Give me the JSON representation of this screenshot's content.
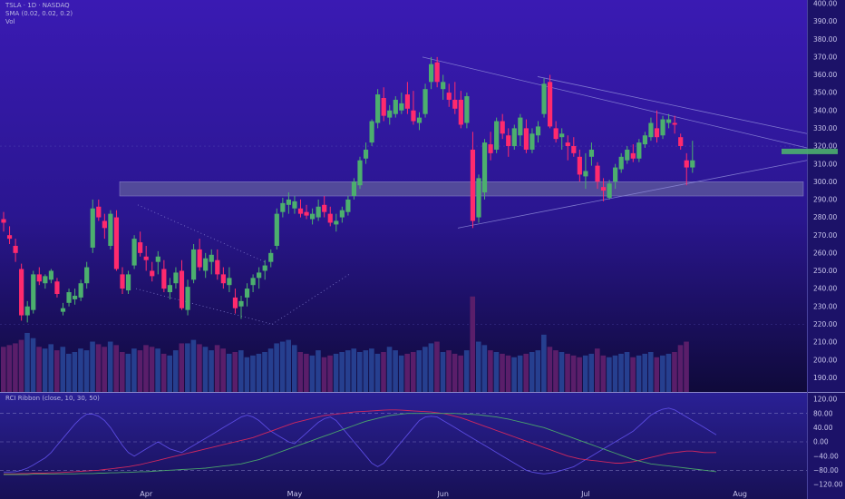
{
  "header": {
    "symbol_line": "TSLA · 1D · NASDAQ",
    "sma_line": "SMA (0.02, 0.02, 0.2)",
    "vol_line": "Vol"
  },
  "indicator": {
    "title": "RCI Ribbon (close, 10, 30, 50)"
  },
  "colors": {
    "bull": "#4caf6e",
    "bear": "#ff2a6d",
    "vol_bull": "#263f8f",
    "vol_bear": "#5a1e6a",
    "zone": "#6a6a9e",
    "rci_short": "#5b4be0",
    "rci_mid": "#d0285e",
    "rci_long": "#4aa36b"
  },
  "chart_data": [
    {
      "type": "candlestick",
      "title": "",
      "ylim": [
        182,
        402
      ],
      "y_ticks": [
        "190.00",
        "200.00",
        "210.00",
        "220.00",
        "230.00",
        "240.00",
        "250.00",
        "260.00",
        "270.00",
        "280.00",
        "290.00",
        "300.00",
        "310.00",
        "320.00",
        "330.00",
        "340.00",
        "350.00",
        "360.00",
        "370.00",
        "380.00",
        "390.00",
        "400.00"
      ],
      "x_ticks": [
        {
          "index": 24,
          "label": "Apr"
        },
        {
          "index": 49,
          "label": "May"
        },
        {
          "index": 74,
          "label": "Jun"
        },
        {
          "index": 98,
          "label": "Jul"
        },
        {
          "index": 124,
          "label": "Aug"
        }
      ],
      "support_zone": [
        292,
        300
      ],
      "current_price_marker": 317,
      "ohlc": [
        [
          279,
          283,
          272,
          277
        ],
        [
          270,
          275,
          265,
          268
        ],
        [
          264,
          268,
          255,
          260
        ],
        [
          251,
          254,
          222,
          225
        ],
        [
          225,
          233,
          221,
          230
        ],
        [
          228,
          250,
          226,
          248
        ],
        [
          248,
          252,
          242,
          244
        ],
        [
          243,
          248,
          240,
          247
        ],
        [
          245,
          251,
          243,
          250
        ],
        [
          244,
          246,
          235,
          237
        ],
        [
          227,
          232,
          225,
          229
        ],
        [
          232,
          240,
          230,
          238
        ],
        [
          234,
          240,
          231,
          236
        ],
        [
          235,
          245,
          233,
          243
        ],
        [
          243,
          255,
          240,
          252
        ],
        [
          263,
          290,
          260,
          285
        ],
        [
          286,
          290,
          278,
          280
        ],
        [
          278,
          282,
          268,
          274
        ],
        [
          264,
          284,
          262,
          282
        ],
        [
          280,
          284,
          250,
          251
        ],
        [
          248,
          252,
          237,
          240
        ],
        [
          239,
          250,
          237,
          248
        ],
        [
          253,
          270,
          251,
          268
        ],
        [
          266,
          272,
          258,
          260
        ],
        [
          258,
          264,
          250,
          256
        ],
        [
          250,
          255,
          244,
          247
        ],
        [
          255,
          261,
          248,
          258
        ],
        [
          251,
          256,
          238,
          240
        ],
        [
          238,
          246,
          234,
          242
        ],
        [
          243,
          252,
          240,
          249
        ],
        [
          250,
          256,
          228,
          229
        ],
        [
          228,
          245,
          225,
          241
        ],
        [
          245,
          265,
          243,
          262
        ],
        [
          262,
          268,
          250,
          252
        ],
        [
          250,
          260,
          246,
          257
        ],
        [
          255,
          262,
          248,
          259
        ],
        [
          256,
          262,
          245,
          248
        ],
        [
          248,
          252,
          240,
          243
        ],
        [
          242,
          252,
          238,
          246
        ],
        [
          235,
          240,
          226,
          229
        ],
        [
          230,
          236,
          223,
          233
        ],
        [
          235,
          243,
          230,
          240
        ],
        [
          242,
          248,
          238,
          246
        ],
        [
          246,
          252,
          240,
          249
        ],
        [
          250,
          256,
          245,
          253
        ],
        [
          255,
          262,
          252,
          260
        ],
        [
          264,
          285,
          262,
          282
        ],
        [
          283,
          291,
          280,
          288
        ],
        [
          287,
          294,
          282,
          290
        ],
        [
          285,
          292,
          282,
          289
        ],
        [
          285,
          290,
          280,
          282
        ],
        [
          283,
          287,
          279,
          281
        ],
        [
          279,
          285,
          276,
          282
        ],
        [
          280,
          290,
          278,
          286
        ],
        [
          287,
          292,
          280,
          283
        ],
        [
          282,
          286,
          275,
          277
        ],
        [
          276,
          282,
          272,
          278
        ],
        [
          280,
          286,
          277,
          284
        ],
        [
          283,
          292,
          281,
          290
        ],
        [
          292,
          302,
          290,
          300
        ],
        [
          298,
          314,
          296,
          312
        ],
        [
          313,
          322,
          310,
          318
        ],
        [
          322,
          335,
          320,
          334
        ],
        [
          333,
          352,
          330,
          349
        ],
        [
          347,
          353,
          334,
          337
        ],
        [
          336,
          343,
          332,
          340
        ],
        [
          338,
          348,
          336,
          346
        ],
        [
          340,
          350,
          338,
          344
        ],
        [
          349,
          356,
          338,
          341
        ],
        [
          340,
          351,
          332,
          334
        ],
        [
          333,
          339,
          329,
          336
        ],
        [
          338,
          355,
          336,
          352
        ],
        [
          356,
          370,
          352,
          366
        ],
        [
          367,
          370,
          353,
          356
        ],
        [
          352,
          360,
          346,
          356
        ],
        [
          350,
          355,
          342,
          346
        ],
        [
          346,
          356,
          338,
          341
        ],
        [
          346,
          351,
          330,
          332
        ],
        [
          333,
          350,
          330,
          348
        ],
        [
          318,
          328,
          274,
          278
        ],
        [
          280,
          304,
          277,
          302
        ],
        [
          294,
          324,
          290,
          322
        ],
        [
          321,
          328,
          312,
          316
        ],
        [
          318,
          336,
          316,
          334
        ],
        [
          334,
          338,
          324,
          327
        ],
        [
          326,
          330,
          314,
          320
        ],
        [
          320,
          332,
          318,
          330
        ],
        [
          326,
          338,
          320,
          336
        ],
        [
          330,
          335,
          316,
          318
        ],
        [
          318,
          330,
          316,
          327
        ],
        [
          326,
          334,
          322,
          331
        ],
        [
          338,
          358,
          336,
          355
        ],
        [
          356,
          360,
          330,
          331
        ],
        [
          330,
          334,
          322,
          324
        ],
        [
          325,
          330,
          318,
          327
        ],
        [
          322,
          326,
          312,
          320
        ],
        [
          320,
          325,
          314,
          316
        ],
        [
          314,
          318,
          300,
          304
        ],
        [
          303,
          316,
          296,
          306
        ],
        [
          314,
          322,
          309,
          318
        ],
        [
          309,
          311,
          296,
          300
        ],
        [
          297,
          302,
          289,
          295
        ],
        [
          291,
          301,
          290,
          299
        ],
        [
          300,
          310,
          296,
          308
        ],
        [
          307,
          316,
          305,
          314
        ],
        [
          312,
          320,
          310,
          318
        ],
        [
          316,
          321,
          311,
          313
        ],
        [
          313,
          324,
          311,
          322
        ],
        [
          321,
          328,
          319,
          326
        ],
        [
          325,
          336,
          323,
          333
        ],
        [
          330,
          340,
          322,
          325
        ],
        [
          326,
          337,
          324,
          335
        ],
        [
          333,
          338,
          330,
          335
        ],
        [
          333,
          337,
          327,
          332
        ],
        [
          325,
          327,
          318,
          320
        ],
        [
          312,
          316,
          298,
          308
        ],
        [
          308,
          323,
          305,
          312
        ]
      ],
      "volume": [
        52,
        54,
        56,
        60,
        68,
        62,
        52,
        50,
        55,
        48,
        52,
        44,
        46,
        50,
        48,
        58,
        55,
        52,
        58,
        54,
        46,
        44,
        50,
        48,
        54,
        52,
        50,
        44,
        42,
        48,
        56,
        56,
        60,
        55,
        52,
        48,
        54,
        50,
        44,
        46,
        48,
        40,
        42,
        44,
        46,
        50,
        56,
        58,
        60,
        54,
        46,
        44,
        42,
        48,
        40,
        42,
        44,
        46,
        48,
        50,
        46,
        48,
        50,
        44,
        46,
        52,
        48,
        42,
        44,
        46,
        48,
        52,
        56,
        58,
        46,
        48,
        44,
        42,
        48,
        110,
        58,
        54,
        48,
        46,
        44,
        42,
        40,
        42,
        44,
        46,
        48,
        66,
        52,
        48,
        46,
        44,
        42,
        40,
        42,
        44,
        50,
        42,
        40,
        42,
        44,
        46,
        40,
        42,
        44,
        46,
        40,
        42,
        44,
        46,
        54,
        58
      ],
      "volume_max": 115
    },
    {
      "type": "line",
      "title": "RCI Ribbon (close, 10, 30, 50)",
      "ylim": [
        -120,
        120
      ],
      "y_ticks": [
        "120.00",
        "80.00",
        "40.00",
        "0.00",
        "−40.00",
        "−80.00",
        "−120.00"
      ],
      "series": [
        {
          "name": "",
          "values": [
            -85,
            -85,
            -84,
            -80,
            -74,
            -65,
            -55,
            -45,
            -30,
            -10,
            10,
            30,
            50,
            66,
            78,
            78,
            72,
            60,
            40,
            15,
            -10,
            -30,
            -40,
            -30,
            -20,
            -10,
            0,
            -10,
            -20,
            -25,
            -30,
            -20,
            -10,
            0,
            10,
            20,
            30,
            40,
            50,
            60,
            70,
            75,
            70,
            60,
            45,
            30,
            20,
            10,
            0,
            -5,
            10,
            25,
            40,
            55,
            65,
            70,
            60,
            40,
            20,
            0,
            -20,
            -40,
            -60,
            -70,
            -60,
            -40,
            -20,
            0,
            20,
            40,
            60,
            70,
            72,
            70,
            60,
            50,
            40,
            30,
            20,
            10,
            0,
            -10,
            -20,
            -30,
            -40,
            -50,
            -60,
            -70,
            -80,
            -85,
            -88,
            -90,
            -88,
            -85,
            -80,
            -75,
            -70,
            -60,
            -50,
            -40,
            -30,
            -20,
            -10,
            0,
            10,
            20,
            30,
            45,
            60,
            75,
            85,
            92,
            95,
            90,
            80,
            70,
            60,
            50,
            40,
            30,
            20
          ]
        },
        {
          "name": "",
          "values": [
            -90,
            -90,
            -90,
            -89,
            -89,
            -88,
            -88,
            -88,
            -87,
            -87,
            -86,
            -85,
            -84,
            -83,
            -82,
            -81,
            -80,
            -78,
            -76,
            -74,
            -72,
            -70,
            -67,
            -64,
            -60,
            -56,
            -52,
            -48,
            -44,
            -40,
            -36,
            -32,
            -28,
            -24,
            -20,
            -16,
            -12,
            -8,
            -4,
            0,
            4,
            8,
            12,
            18,
            24,
            30,
            36,
            42,
            48,
            54,
            58,
            62,
            66,
            70,
            74,
            76,
            78,
            80,
            82,
            84,
            85,
            86,
            87,
            88,
            89,
            90,
            90,
            89,
            88,
            87,
            86,
            85,
            84,
            82,
            80,
            76,
            72,
            68,
            62,
            56,
            50,
            44,
            38,
            32,
            26,
            20,
            14,
            8,
            2,
            -4,
            -10,
            -16,
            -22,
            -28,
            -34,
            -40,
            -44,
            -48,
            -50,
            -52,
            -54,
            -56,
            -58,
            -60,
            -60,
            -58,
            -56,
            -52,
            -48,
            -44,
            -40,
            -36,
            -32,
            -30,
            -28,
            -26,
            -26,
            -28,
            -30,
            -30,
            -30
          ]
        },
        {
          "name": "",
          "values": [
            -92,
            -92,
            -92,
            -92,
            -92,
            -91,
            -91,
            -91,
            -91,
            -90,
            -90,
            -90,
            -90,
            -89,
            -89,
            -89,
            -88,
            -88,
            -87,
            -87,
            -86,
            -86,
            -85,
            -84,
            -84,
            -83,
            -82,
            -81,
            -80,
            -79,
            -78,
            -77,
            -76,
            -75,
            -74,
            -72,
            -70,
            -68,
            -66,
            -64,
            -62,
            -58,
            -54,
            -50,
            -44,
            -38,
            -32,
            -26,
            -20,
            -14,
            -8,
            -2,
            4,
            10,
            16,
            22,
            28,
            34,
            40,
            46,
            52,
            58,
            62,
            66,
            70,
            74,
            76,
            78,
            80,
            80,
            80,
            80,
            80,
            80,
            80,
            80,
            80,
            79,
            78,
            77,
            76,
            74,
            72,
            70,
            67,
            64,
            60,
            56,
            52,
            48,
            44,
            40,
            34,
            28,
            22,
            16,
            10,
            4,
            -2,
            -8,
            -14,
            -20,
            -26,
            -32,
            -38,
            -44,
            -50,
            -54,
            -58,
            -62,
            -64,
            -66,
            -68,
            -70,
            -72,
            -74,
            -76,
            -78,
            -80,
            -82,
            -84
          ]
        }
      ]
    }
  ]
}
